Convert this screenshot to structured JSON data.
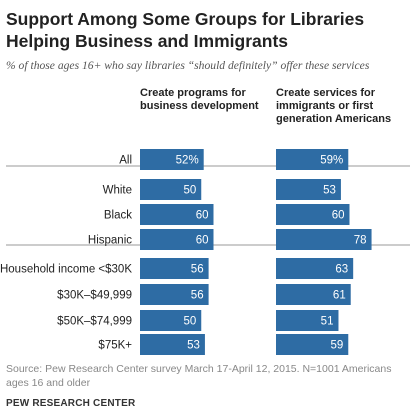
{
  "title": "Support Among Some Groups for Libraries Helping Business and Immigrants",
  "subtitle": "% of those ages 16+ who say libraries “should definitely” offer these services",
  "source": "Source: Pew Research Center survey March 17-April 12, 2015. N=1001 Americans ages 16 and older",
  "organization": "PEW RESEARCH CENTER",
  "chart_data": {
    "type": "bar",
    "orientation": "horizontal",
    "categories": [
      "All",
      "White",
      "Black",
      "Hispanic",
      "Household income <$30K",
      "$30K–$49,999",
      "$50K–$74,999",
      "$75K+"
    ],
    "series": [
      {
        "name": "Create programs for business development",
        "values": [
          52,
          50,
          60,
          60,
          56,
          56,
          50,
          53
        ],
        "labels": [
          "52%",
          "50",
          "60",
          "60",
          "56",
          "56",
          "50",
          "53"
        ]
      },
      {
        "name": "Create services for immigrants or first generation Americans",
        "values": [
          59,
          53,
          60,
          78,
          63,
          61,
          51,
          59
        ],
        "labels": [
          "59%",
          "53",
          "60",
          "78",
          "63",
          "61",
          "51",
          "59"
        ]
      }
    ],
    "colors": {
      "bar": "#2e6ca4",
      "label": "#ffffff",
      "divider": "#9a9a9a"
    },
    "xlim": [
      0,
      100
    ]
  }
}
